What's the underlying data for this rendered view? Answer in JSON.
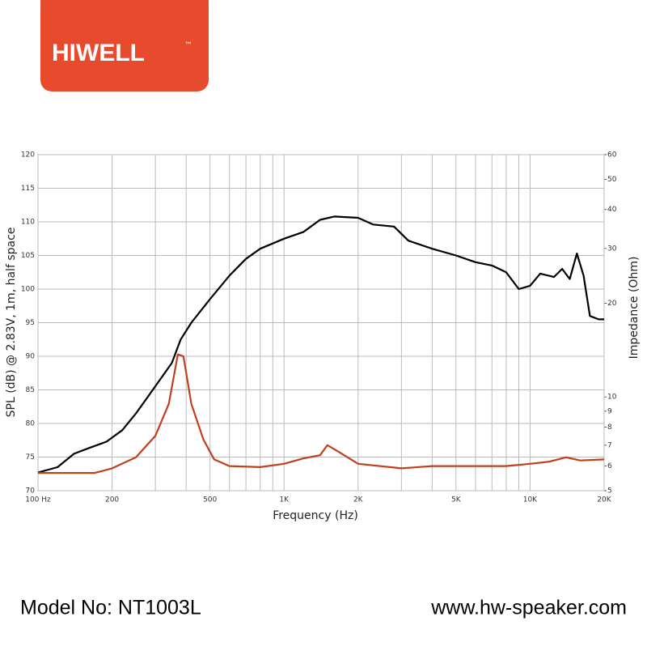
{
  "logo": {
    "text": "HIWELL",
    "mark": "™"
  },
  "chart_data": {
    "type": "line",
    "x_label": "Frequency (Hz)",
    "y_label": "SPL (dB) @ 2.83V, 1m, half space",
    "y2_label": "Impedance (Ohm)",
    "xscale": "log",
    "y2scale": "log",
    "grid": true,
    "xlim": [
      100,
      20000
    ],
    "xticks": [
      {
        "value": 100,
        "label": "100 Hz"
      },
      200,
      500,
      {
        "value": 1000,
        "label": "1K"
      },
      {
        "value": 2000,
        "label": "2K"
      },
      {
        "value": 5000,
        "label": "5K"
      },
      {
        "value": 10000,
        "label": "10K"
      },
      {
        "value": 20000,
        "label": "20K"
      }
    ],
    "xgrid": [
      300,
      400,
      600,
      700,
      800,
      900,
      3000,
      4000,
      6000,
      7000,
      8000,
      9000
    ],
    "ylim": [
      70,
      120
    ],
    "yticks": [
      70,
      75,
      80,
      85,
      90,
      95,
      100,
      105,
      110,
      115,
      120
    ],
    "y2lim": [
      5,
      60
    ],
    "y2ticks": [
      5,
      6,
      7,
      8,
      9,
      10,
      20,
      30,
      40,
      50,
      60
    ],
    "series": [
      {
        "color": "#000000",
        "x": [
          100,
          120,
          140,
          160,
          190,
          220,
          250,
          280,
          320,
          350,
          380,
          420,
          500,
          600,
          700,
          800,
          1000,
          1200,
          1400,
          1600,
          2000,
          2300,
          2800,
          3200,
          4000,
          5000,
          6000,
          7000,
          8000,
          9000,
          10000,
          11000,
          12500,
          13500,
          14500,
          15500,
          16500,
          17500,
          19000,
          20000
        ],
        "values": [
          72.7,
          73.5,
          75.5,
          76.3,
          77.3,
          79,
          81.5,
          84,
          87,
          89,
          92.5,
          95,
          98.5,
          102,
          104.5,
          106,
          107.5,
          108.5,
          110.3,
          110.8,
          110.6,
          109.6,
          109.3,
          107.2,
          106,
          105,
          104,
          103.5,
          102.5,
          100,
          100.5,
          102.3,
          101.8,
          103,
          101.5,
          105.3,
          102,
          96,
          95.5,
          95.5
        ]
      },
      {
        "color": "#c0401c",
        "axis": "y2",
        "x": [
          100,
          170,
          200,
          250,
          300,
          340,
          370,
          390,
          420,
          470,
          520,
          600,
          800,
          1000,
          1200,
          1400,
          1500,
          1700,
          2000,
          3000,
          4000,
          6000,
          8000,
          10000,
          12000,
          14000,
          16000,
          20000
        ],
        "values": [
          5.7,
          5.7,
          5.9,
          6.4,
          7.5,
          9.5,
          13.7,
          13.5,
          9.5,
          7.3,
          6.3,
          6.0,
          5.95,
          6.1,
          6.35,
          6.5,
          7.0,
          6.6,
          6.1,
          5.9,
          6.0,
          6.0,
          6.0,
          6.1,
          6.2,
          6.4,
          6.25,
          6.3
        ]
      }
    ]
  },
  "footer": {
    "model": "Model No: NT1003L",
    "site": "www.hw-speaker.com"
  }
}
